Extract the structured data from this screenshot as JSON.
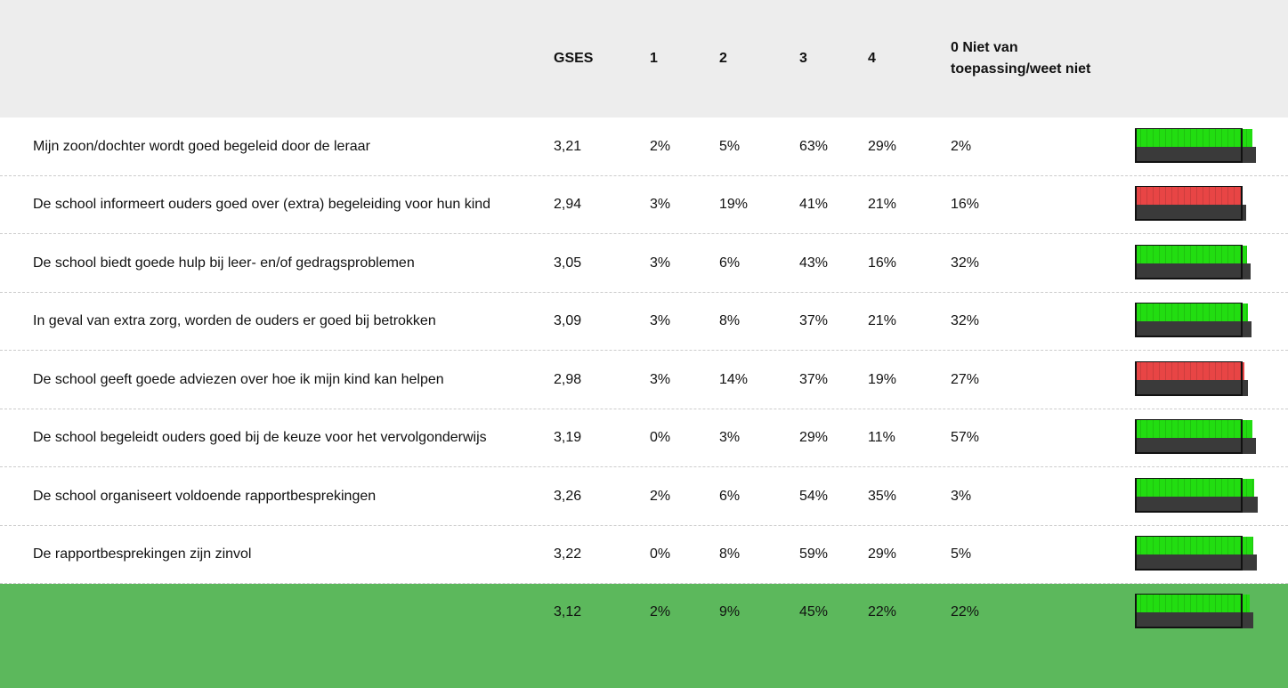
{
  "table": {
    "header": [
      "GSES",
      "1",
      "2",
      "3",
      "4",
      "0 Niet van toepassing/weet niet"
    ],
    "rows": [
      {
        "label": "Mijn zoon/dochter wordt goed begeleid door de leraar",
        "gses": "3,21",
        "cells": [
          "2%",
          "5%",
          "63%",
          "29%",
          "2%"
        ],
        "color": "#22dd11"
      },
      {
        "label": "De school informeert ouders goed over (extra) begeleiding voor hun kind",
        "gses": "2,94",
        "cells": [
          "3%",
          "19%",
          "41%",
          "21%",
          "16%"
        ],
        "color": "#e84545"
      },
      {
        "label": "De school biedt goede hulp bij leer- en/of gedragsproblemen",
        "gses": "3,05",
        "cells": [
          "3%",
          "6%",
          "43%",
          "16%",
          "32%"
        ],
        "color": "#22dd11"
      },
      {
        "label": "In geval van extra zorg, worden de ouders er goed bij betrokken",
        "gses": "3,09",
        "cells": [
          "3%",
          "8%",
          "37%",
          "21%",
          "32%"
        ],
        "color": "#22dd11"
      },
      {
        "label": "De school geeft goede adviezen over hoe ik mijn kind kan helpen",
        "gses": "2,98",
        "cells": [
          "3%",
          "14%",
          "37%",
          "19%",
          "27%"
        ],
        "color": "#e84545"
      },
      {
        "label": "De school begeleidt ouders goed bij de keuze voor het vervolgonderwijs",
        "gses": "3,19",
        "cells": [
          "0%",
          "3%",
          "29%",
          "11%",
          "57%"
        ],
        "color": "#22dd11"
      },
      {
        "label": "De school organiseert voldoende rapportbesprekingen",
        "gses": "3,26",
        "cells": [
          "2%",
          "6%",
          "54%",
          "35%",
          "3%"
        ],
        "color": "#22dd11"
      },
      {
        "label": "De rapportbesprekingen zijn zinvol",
        "gses": "3,22",
        "cells": [
          "0%",
          "8%",
          "59%",
          "29%",
          "5%"
        ],
        "color": "#22dd11"
      }
    ],
    "summary": {
      "gses": "3,12",
      "cells": [
        "2%",
        "9%",
        "45%",
        "22%",
        "22%"
      ],
      "color": "#22dd11"
    }
  }
}
